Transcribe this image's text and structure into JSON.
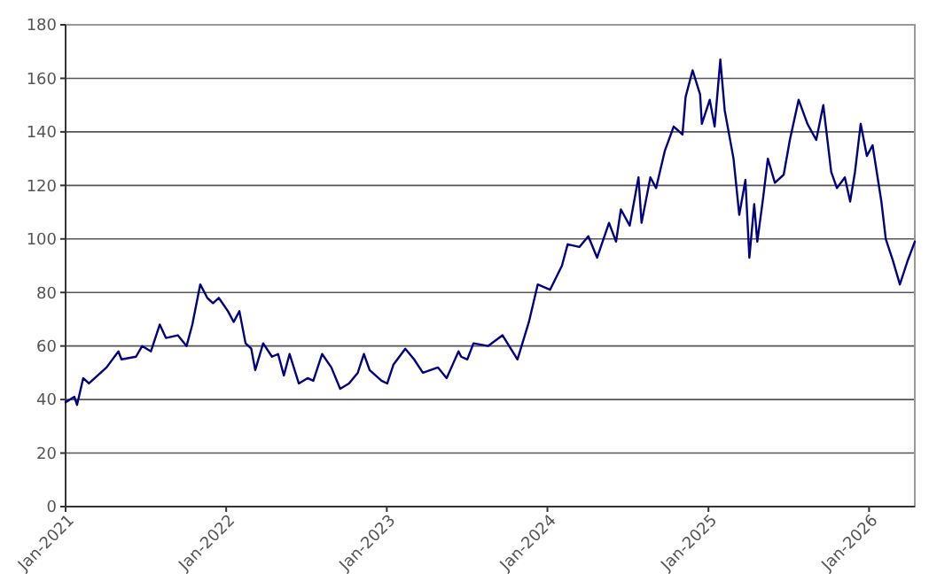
{
  "chart_data": {
    "type": "line",
    "x": [
      "2021-01-01",
      "2021-01-21",
      "2021-01-27",
      "2021-02-10",
      "2021-02-23",
      "2021-03-15",
      "2021-04-04",
      "2021-05-01",
      "2021-05-08",
      "2021-06-10",
      "2021-06-24",
      "2021-07-14",
      "2021-08-03",
      "2021-08-17",
      "2021-09-13",
      "2021-10-03",
      "2021-10-16",
      "2021-11-03",
      "2021-11-19",
      "2021-12-02",
      "2021-12-15",
      "2022-01-05",
      "2022-01-18",
      "2022-01-31",
      "2022-02-14",
      "2022-02-27",
      "2022-03-08",
      "2022-03-26",
      "2022-04-15",
      "2022-04-29",
      "2022-05-12",
      "2022-05-25",
      "2022-06-15",
      "2022-07-05",
      "2022-07-18",
      "2022-08-07",
      "2022-08-28",
      "2022-09-17",
      "2022-10-07",
      "2022-10-27",
      "2022-11-10",
      "2022-11-23",
      "2022-12-20",
      "2023-01-02",
      "2023-01-16",
      "2023-02-12",
      "2023-03-04",
      "2023-03-24",
      "2023-04-27",
      "2023-05-17",
      "2023-06-13",
      "2023-06-19",
      "2023-07-03",
      "2023-07-17",
      "2023-08-19",
      "2023-09-21",
      "2023-10-25",
      "2023-11-20",
      "2023-12-10",
      "2024-01-07",
      "2024-02-03",
      "2024-02-16",
      "2024-03-14",
      "2024-04-03",
      "2024-04-23",
      "2024-05-20",
      "2024-06-05",
      "2024-06-16",
      "2024-07-06",
      "2024-07-26",
      "2024-08-02",
      "2024-08-22",
      "2024-09-04",
      "2024-09-24",
      "2024-10-14",
      "2024-11-03",
      "2024-11-10",
      "2024-11-26",
      "2024-12-13",
      "2024-12-17",
      "2025-01-04",
      "2025-01-15",
      "2025-01-28",
      "2025-02-07",
      "2025-02-27",
      "2025-03-12",
      "2025-03-26",
      "2025-04-04",
      "2025-04-15",
      "2025-04-22",
      "2025-05-05",
      "2025-05-16",
      "2025-06-01",
      "2025-06-21",
      "2025-07-05",
      "2025-07-25",
      "2025-08-14",
      "2025-09-03",
      "2025-09-19",
      "2025-10-07",
      "2025-10-20",
      "2025-11-07",
      "2025-11-19",
      "2025-11-30",
      "2025-12-13",
      "2025-12-27",
      "2026-01-09",
      "2026-01-29",
      "2026-02-08",
      "2026-02-24",
      "2026-03-12",
      "2026-03-30",
      "2026-04-15"
    ],
    "series": [
      {
        "color": "#000080",
        "values": [
          39,
          41,
          38,
          48,
          46,
          49,
          52,
          58,
          55,
          56,
          60,
          58,
          68,
          63,
          64,
          60,
          68,
          83,
          78,
          76,
          78,
          73,
          69,
          73,
          61,
          59,
          51,
          61,
          56,
          57,
          49,
          57,
          46,
          48,
          47,
          57,
          52,
          44,
          46,
          50,
          57,
          51,
          47,
          46,
          53,
          59,
          55,
          50,
          52,
          48,
          58,
          56,
          55,
          61,
          60,
          64,
          55,
          69,
          83,
          81,
          90,
          98,
          97,
          101,
          93,
          106,
          99,
          111,
          105,
          123,
          106,
          123,
          119,
          133,
          142,
          139,
          153,
          163,
          154,
          143,
          152,
          142,
          167,
          148,
          130,
          109,
          122,
          93,
          113,
          99,
          115,
          130,
          121,
          124,
          137,
          152,
          143,
          137,
          150,
          125,
          119,
          123,
          114,
          125,
          143,
          131,
          135,
          114,
          100,
          92,
          83,
          92,
          99
        ]
      }
    ],
    "xlim": [
      "2021-01-01",
      "2026-04-15"
    ],
    "xticks": [
      {
        "value": "2021-01-01",
        "label": "Jan-2021"
      },
      {
        "value": "2022-01-01",
        "label": "Jan-2022"
      },
      {
        "value": "2023-01-01",
        "label": "Jan-2023"
      },
      {
        "value": "2024-01-01",
        "label": "Jan-2024"
      },
      {
        "value": "2025-01-01",
        "label": "Jan-2025"
      },
      {
        "value": "2026-01-01",
        "label": "Jan-2026"
      }
    ],
    "ylim": [
      0,
      180
    ],
    "yticks": [
      0,
      20,
      40,
      60,
      80,
      100,
      120,
      140,
      160,
      180
    ],
    "grid": "y",
    "marker": "none",
    "line_style": "solid"
  }
}
